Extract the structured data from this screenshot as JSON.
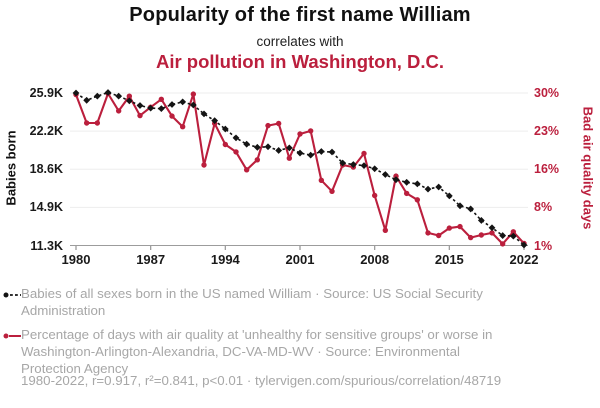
{
  "header": {
    "title": "Popularity of the first name William",
    "connector": "correlates with",
    "subtitle": "Air pollution in Washington, D.C."
  },
  "legend": [
    {
      "label": "Babies of all sexes born in the US named William · Source: US Social Security Administration"
    },
    {
      "label": "Percentage of days with air quality at 'unhealthy for sensitive groups' or worse in Washington-Arlington-Alexandria, DC-VA-MD-WV · Source: Environmental Protection Agency"
    }
  ],
  "footer": {
    "text": "1980-2022, r=0.917, r²=0.841, p<0.01 · tylervigen.com/spurious/correlation/48719"
  },
  "colors": {
    "red": "#bb1f3d",
    "black_series": "#141414",
    "gray_text": "#a7a7a7",
    "gridline": "#ededed",
    "axis": "#9c9c9c"
  },
  "chart_data": {
    "type": "line",
    "title": "Popularity of the first name William correlates with Air pollution in Washington, D.C.",
    "xlabel": "",
    "ylabel_left": "Babies born",
    "ylabel_right": "Bad air quality days",
    "grid": true,
    "legend_position": "bottom",
    "x": [
      1980,
      1981,
      1982,
      1983,
      1984,
      1985,
      1986,
      1987,
      1988,
      1989,
      1990,
      1991,
      1992,
      1993,
      1994,
      1995,
      1996,
      1997,
      1998,
      1999,
      2000,
      2001,
      2002,
      2003,
      2004,
      2005,
      2006,
      2007,
      2008,
      2009,
      2010,
      2011,
      2012,
      2013,
      2014,
      2015,
      2016,
      2017,
      2018,
      2019,
      2020,
      2021,
      2022
    ],
    "x_tick_labels": [
      "1980",
      "1987",
      "1994",
      "2001",
      "2008",
      "2015",
      "2022"
    ],
    "y_ticks_left": [
      "25.9K",
      "22.2K",
      "18.6K",
      "14.9K",
      "11.3K"
    ],
    "y_ticks_right": [
      "30%",
      "23%",
      "16%",
      "8%",
      "1%"
    ],
    "ylim_left": [
      11300,
      25900
    ],
    "ylim_right": [
      1,
      30
    ],
    "series": [
      {
        "name": "Babies of all sexes born in the US named William",
        "axis": "left",
        "style": "black-dashed-diamond",
        "values": [
          25900,
          25200,
          25600,
          25950,
          25600,
          25150,
          24700,
          24450,
          24400,
          24800,
          25050,
          24750,
          23900,
          23250,
          22450,
          21600,
          21000,
          20700,
          20750,
          20400,
          20650,
          20150,
          19950,
          20300,
          20250,
          19200,
          19050,
          18950,
          18650,
          18100,
          17600,
          17350,
          17200,
          16700,
          16900,
          16050,
          15100,
          14800,
          13700,
          13000,
          12250,
          12200,
          11350
        ]
      },
      {
        "name": "Bad air quality days in Washington, D.C. (%)",
        "axis": "right",
        "style": "red-solid-circle",
        "values": [
          29.7,
          24.3,
          24.3,
          29.9,
          26.6,
          29.4,
          25.7,
          27.3,
          28.8,
          25.6,
          23.6,
          29.8,
          16.3,
          24.2,
          20.2,
          18.8,
          15.4,
          17.3,
          23.8,
          24.2,
          17.6,
          22.2,
          22.8,
          13.4,
          11.3,
          16.3,
          15.9,
          18.5,
          10.5,
          3.9,
          14.2,
          10.9,
          9.7,
          3.4,
          2.9,
          4.3,
          4.6,
          2.5,
          3.0,
          3.4,
          1.3,
          3.6,
          1.4
        ]
      }
    ]
  }
}
